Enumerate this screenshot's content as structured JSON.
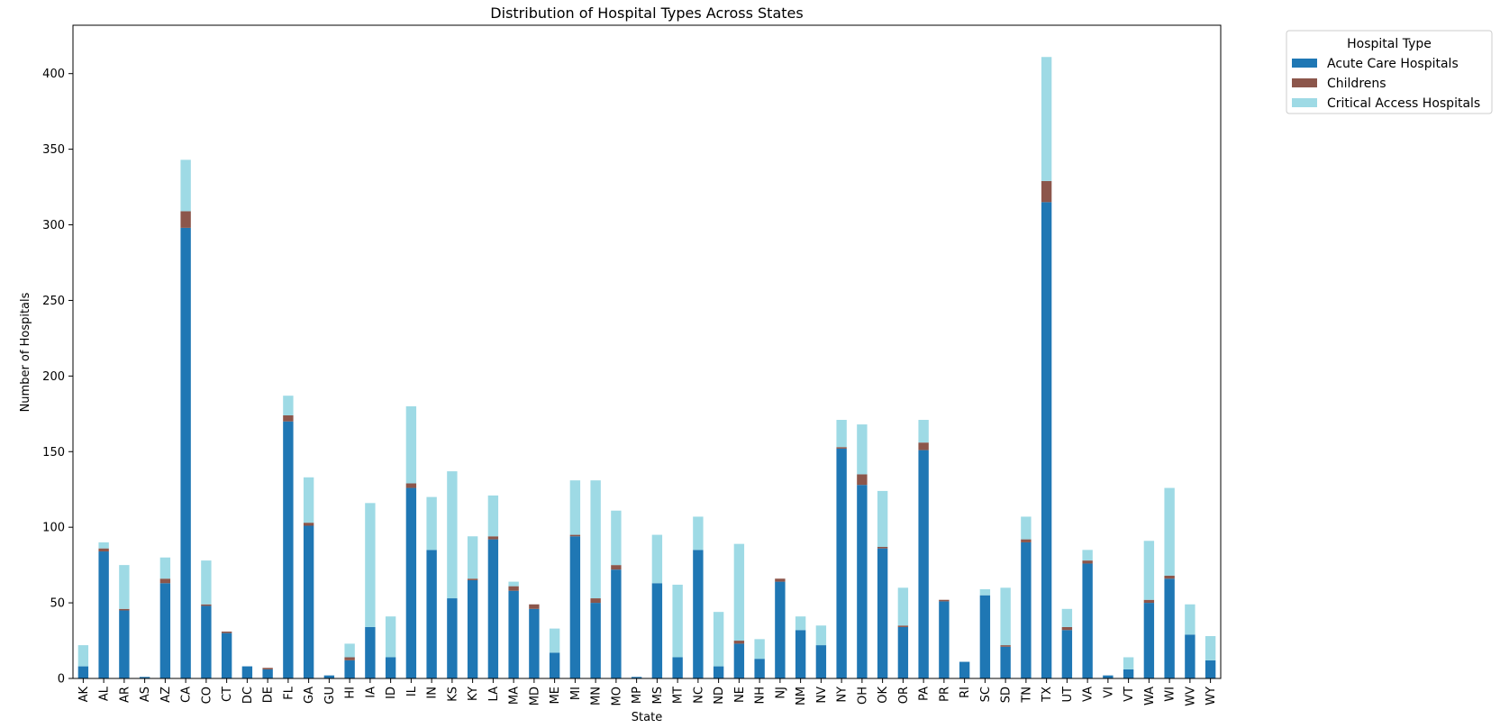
{
  "chart_data": {
    "type": "bar",
    "stacked": true,
    "title": "Distribution of Hospital Types Across States",
    "xlabel": "State",
    "ylabel": "Number of Hospitals",
    "ylim": [
      0,
      432
    ],
    "yticks": [
      0,
      50,
      100,
      150,
      200,
      250,
      300,
      350,
      400
    ],
    "grid": false,
    "legend": {
      "title": "Hospital Type",
      "placement": "outside-top-right"
    },
    "categories": [
      "AK",
      "AL",
      "AR",
      "AS",
      "AZ",
      "CA",
      "CO",
      "CT",
      "DC",
      "DE",
      "FL",
      "GA",
      "GU",
      "HI",
      "IA",
      "ID",
      "IL",
      "IN",
      "KS",
      "KY",
      "LA",
      "MA",
      "MD",
      "ME",
      "MI",
      "MN",
      "MO",
      "MP",
      "MS",
      "MT",
      "NC",
      "ND",
      "NE",
      "NH",
      "NJ",
      "NM",
      "NV",
      "NY",
      "OH",
      "OK",
      "OR",
      "PA",
      "PR",
      "RI",
      "SC",
      "SD",
      "TN",
      "TX",
      "UT",
      "VA",
      "VI",
      "VT",
      "WA",
      "WI",
      "WV",
      "WY"
    ],
    "series": [
      {
        "name": "Acute Care Hospitals",
        "color": "#1f77b4",
        "values": [
          8,
          84,
          45,
          1,
          63,
          298,
          48,
          30,
          8,
          6,
          170,
          101,
          2,
          12,
          34,
          14,
          126,
          85,
          53,
          65,
          92,
          58,
          46,
          17,
          94,
          50,
          72,
          1,
          63,
          14,
          85,
          8,
          23,
          13,
          64,
          32,
          22,
          152,
          128,
          86,
          34,
          151,
          51,
          11,
          55,
          21,
          90,
          315,
          32,
          76,
          2,
          6,
          50,
          66,
          29,
          12
        ]
      },
      {
        "name": "Childrens",
        "color": "#8c564b",
        "values": [
          0,
          2,
          1,
          0,
          3,
          11,
          1,
          1,
          0,
          1,
          4,
          2,
          0,
          2,
          0,
          0,
          3,
          0,
          0,
          1,
          2,
          3,
          3,
          0,
          1,
          3,
          3,
          0,
          0,
          0,
          0,
          0,
          2,
          0,
          2,
          0,
          0,
          1,
          7,
          1,
          1,
          5,
          1,
          0,
          0,
          1,
          2,
          14,
          2,
          2,
          0,
          0,
          2,
          2,
          0,
          0
        ]
      },
      {
        "name": "Critical Access Hospitals",
        "color": "#9edae5",
        "values": [
          14,
          4,
          29,
          0,
          14,
          34,
          29,
          0,
          0,
          0,
          13,
          30,
          0,
          9,
          82,
          27,
          51,
          35,
          84,
          28,
          27,
          3,
          0,
          16,
          36,
          78,
          36,
          0,
          32,
          48,
          22,
          36,
          64,
          13,
          0,
          9,
          13,
          18,
          33,
          37,
          25,
          15,
          0,
          0,
          4,
          38,
          15,
          82,
          12,
          7,
          0,
          8,
          39,
          58,
          20,
          16
        ]
      }
    ]
  }
}
